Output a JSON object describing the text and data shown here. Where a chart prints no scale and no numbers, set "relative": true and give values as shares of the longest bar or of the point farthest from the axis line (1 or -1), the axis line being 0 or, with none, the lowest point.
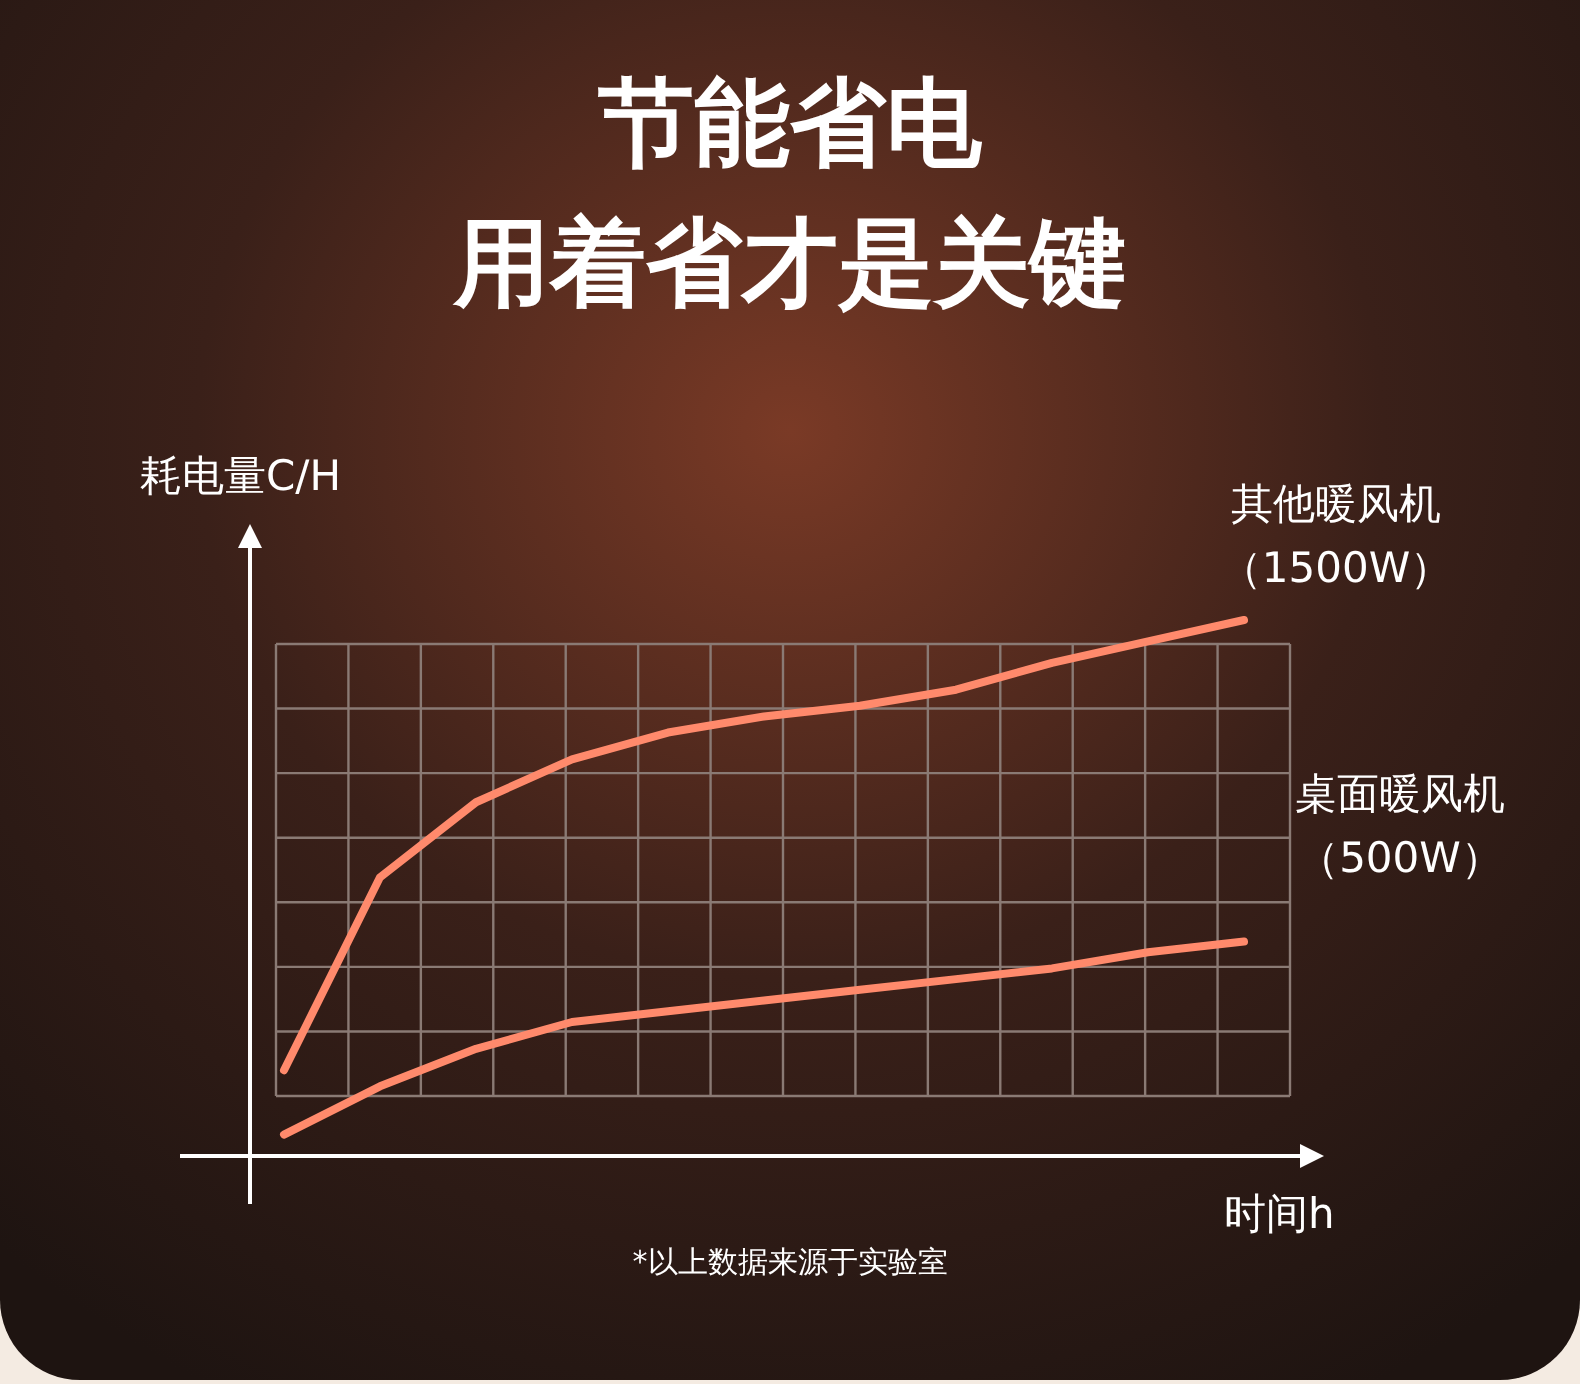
{
  "chart_data": {
    "type": "line",
    "title": "节能省电",
    "subtitle": "用着省才是关键",
    "xlabel": "时间h",
    "ylabel": "耗电量C/H",
    "relative": true,
    "grid": true,
    "marker": "none",
    "line_style": "solid",
    "categories": [
      null,
      null,
      null,
      null,
      null,
      null,
      null,
      null,
      null,
      null,
      null
    ],
    "series": [
      {
        "name": "其他暖风机（1500W）",
        "color": "#ff8a6c",
        "values": [
          0.16,
          0.52,
          0.66,
          0.74,
          0.79,
          0.82,
          0.84,
          0.87,
          0.92,
          0.96,
          1
        ]
      },
      {
        "name": "桌面暖风机（500W）",
        "color": "#ff8a6c",
        "values": [
          0.04,
          0.13,
          0.2,
          0.25,
          0.27,
          0.29,
          0.31,
          0.33,
          0.35,
          0.38,
          0.4
        ]
      }
    ],
    "annotations": [
      "*以上数据来源于实验室"
    ]
  }
}
